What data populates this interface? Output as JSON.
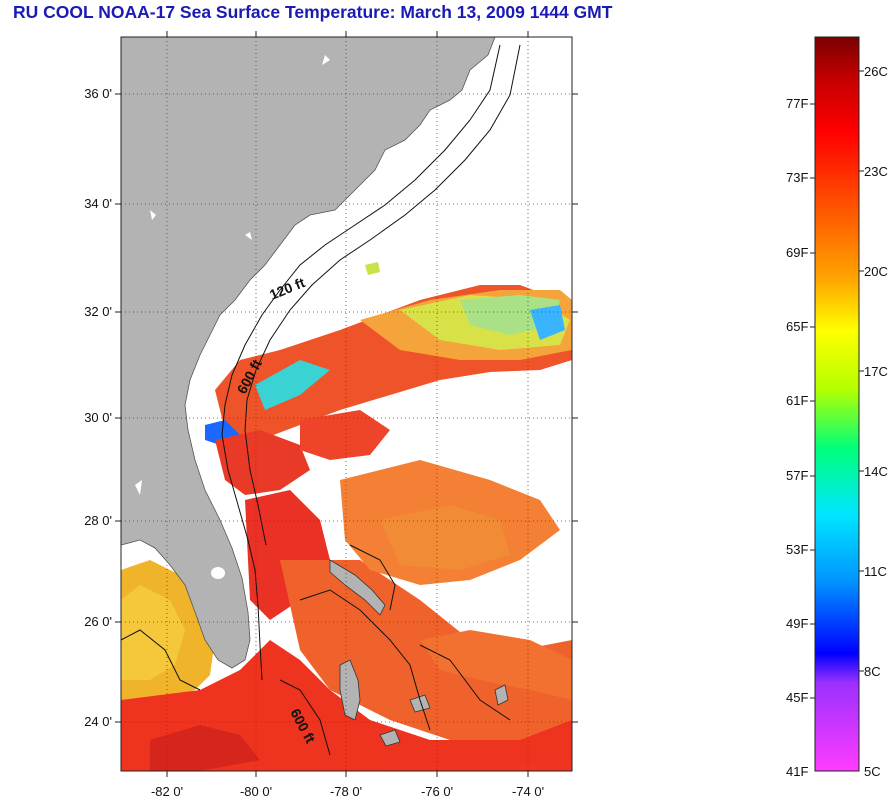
{
  "title": "RU COOL  NOAA-17  Sea Surface Temperature:  March 13, 2009 1444 GMT",
  "map": {
    "lat_labels": [
      "36 0'",
      "34 0'",
      "32 0'",
      "30 0'",
      "28 0'",
      "26 0'",
      "24 0'"
    ],
    "lon_labels": [
      "-82 0'",
      "-80 0'",
      "-78 0'",
      "-76 0'",
      "-74 0'"
    ],
    "contours": [
      "120 ft",
      "600 ft",
      "600 ft"
    ]
  },
  "colorbar": {
    "f_labels": [
      "77F",
      "73F",
      "69F",
      "65F",
      "61F",
      "57F",
      "53F",
      "49F",
      "45F",
      "41F"
    ],
    "c_labels": [
      "26C",
      "23C",
      "20C",
      "17C",
      "14C",
      "11C",
      "8C",
      "5C"
    ],
    "colors": [
      "#7a0000",
      "#c80000",
      "#ff0000",
      "#ff6a00",
      "#ffa500",
      "#ffff00",
      "#b4ff00",
      "#00ff7a",
      "#00e6ff",
      "#0096ff",
      "#0000ff",
      "#9b30ff",
      "#ff3cff"
    ]
  }
}
